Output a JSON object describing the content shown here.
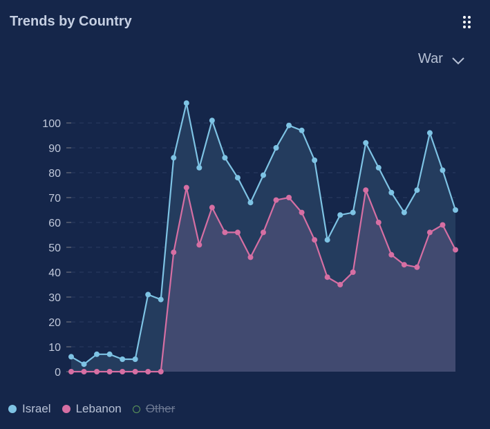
{
  "header": {
    "title": "Trends by Country",
    "menu_icon": "dots-grid-icon"
  },
  "filter": {
    "selected": "War"
  },
  "legend": [
    {
      "label": "Israel",
      "color": "#7ec3e4",
      "active": true
    },
    {
      "label": "Lebanon",
      "color": "#d66fa3",
      "active": true
    },
    {
      "label": "Other",
      "color": "#5f9a5a",
      "active": false
    }
  ],
  "chart_data": {
    "type": "area",
    "title": "Trends by Country",
    "ylim": [
      0,
      100
    ],
    "yticks": [
      0,
      10,
      20,
      30,
      40,
      50,
      60,
      70,
      80,
      90,
      100
    ],
    "grid": true,
    "legend_position": "bottom-left",
    "series": [
      {
        "name": "Israel",
        "color": "#7ec3e4",
        "values": [
          6,
          3,
          7,
          7,
          5,
          5,
          31,
          29,
          86,
          108,
          82,
          101,
          86,
          78,
          68,
          79,
          90,
          99,
          97,
          85,
          53,
          63,
          64,
          92,
          82,
          72,
          64,
          73,
          96,
          81,
          65
        ]
      },
      {
        "name": "Lebanon",
        "color": "#d66fa3",
        "values": [
          0,
          0,
          0,
          0,
          0,
          0,
          0,
          0,
          48,
          74,
          51,
          66,
          56,
          56,
          46,
          56,
          69,
          70,
          64,
          53,
          38,
          35,
          40,
          73,
          60,
          47,
          43,
          42,
          56,
          59,
          49
        ]
      }
    ]
  }
}
